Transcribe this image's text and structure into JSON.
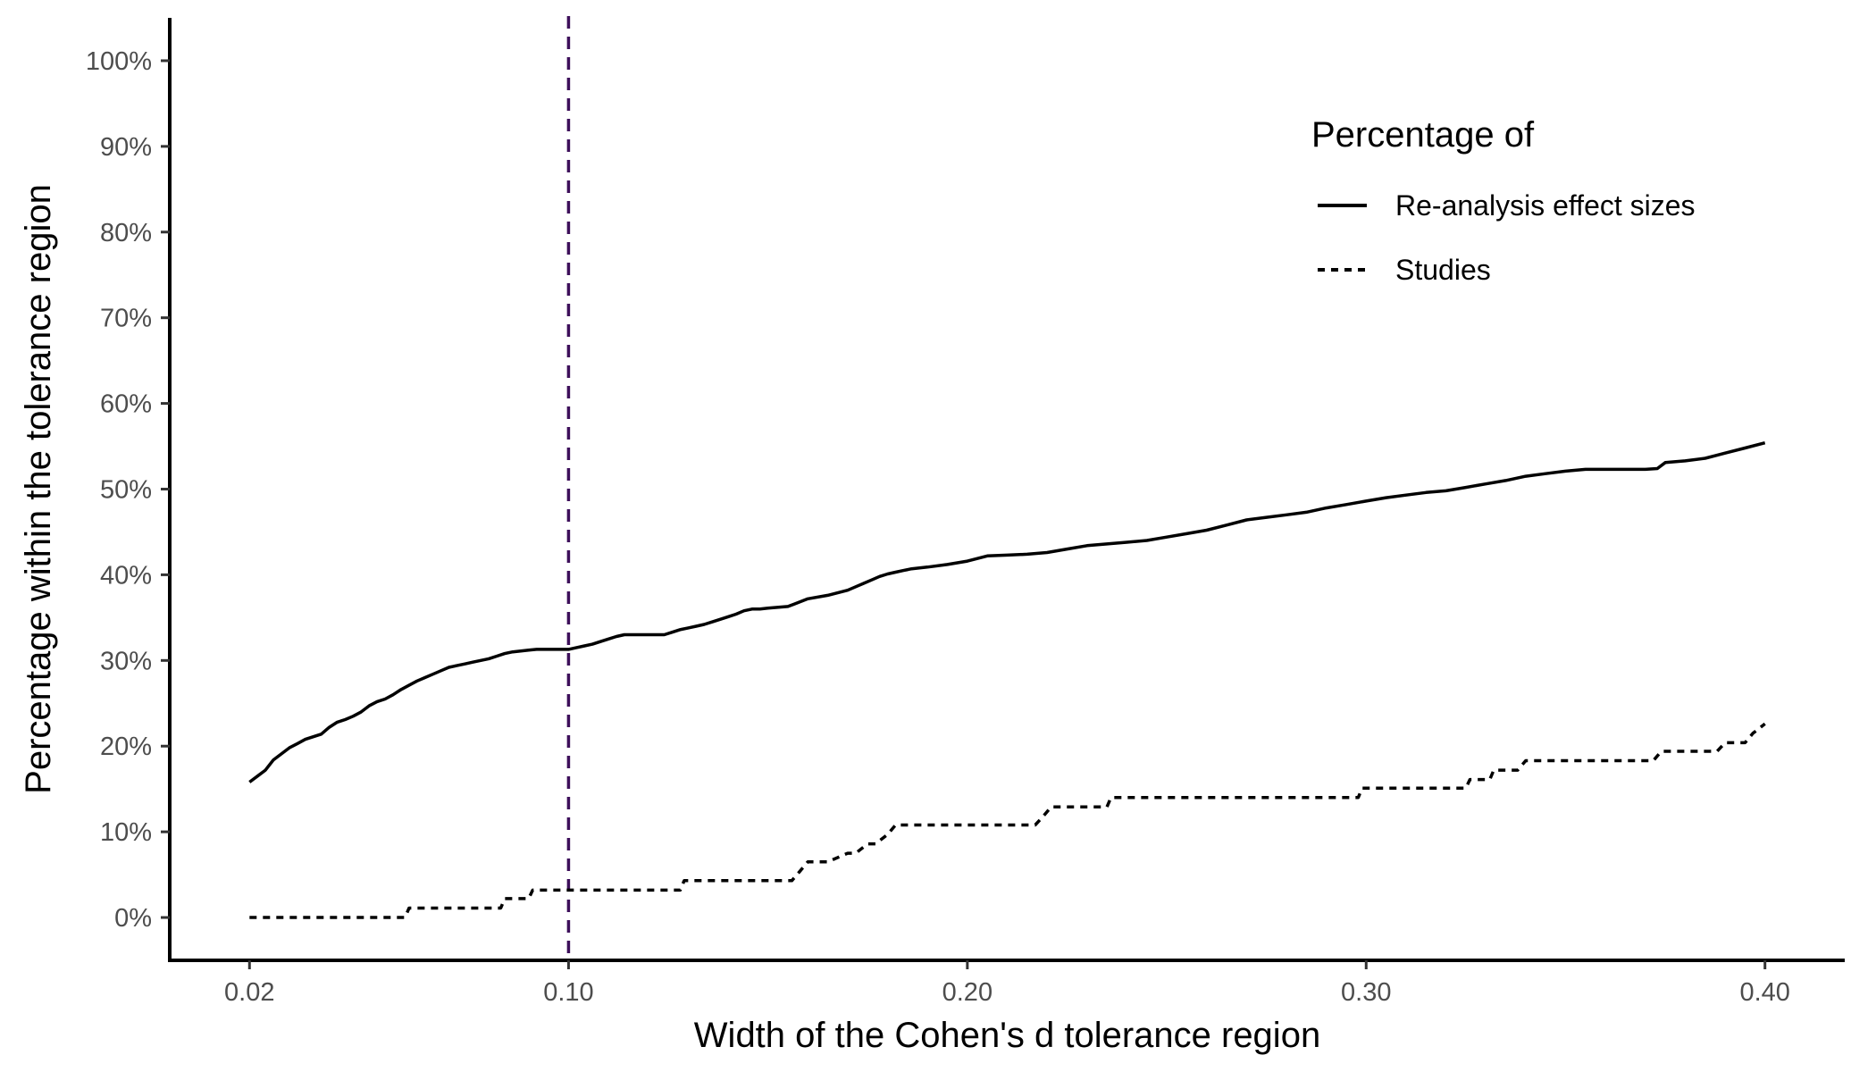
{
  "chart_data": {
    "type": "line",
    "title": "",
    "xlabel": "Width of the Cohen's d tolerance region",
    "ylabel": "Percentage within the tolerance region",
    "xlim": [
      0.0,
      0.42
    ],
    "ylim": [
      -5,
      105
    ],
    "x_ticks": [
      {
        "value": 0.02,
        "label": "0.02"
      },
      {
        "value": 0.1,
        "label": "0.10"
      },
      {
        "value": 0.2,
        "label": "0.20"
      },
      {
        "value": 0.3,
        "label": "0.30"
      },
      {
        "value": 0.4,
        "label": "0.40"
      }
    ],
    "y_ticks": [
      {
        "value": 0,
        "label": "0%"
      },
      {
        "value": 10,
        "label": "10%"
      },
      {
        "value": 20,
        "label": "20%"
      },
      {
        "value": 30,
        "label": "30%"
      },
      {
        "value": 40,
        "label": "40%"
      },
      {
        "value": 50,
        "label": "50%"
      },
      {
        "value": 60,
        "label": "60%"
      },
      {
        "value": 70,
        "label": "70%"
      },
      {
        "value": 80,
        "label": "80%"
      },
      {
        "value": 90,
        "label": "90%"
      },
      {
        "value": 100,
        "label": "100%"
      }
    ],
    "grid": false,
    "reference_line": {
      "x": 0.1,
      "color": "#3d0f5a",
      "style": "dashed"
    },
    "legend": {
      "title": "Percentage of",
      "placement": "top-right"
    },
    "series": [
      {
        "name": "Re-analysis effect sizes",
        "style": "solid",
        "color": "#000000",
        "x": [
          0.02,
          0.022,
          0.024,
          0.026,
          0.028,
          0.03,
          0.032,
          0.034,
          0.036,
          0.038,
          0.04,
          0.042,
          0.044,
          0.046,
          0.048,
          0.05,
          0.052,
          0.054,
          0.056,
          0.058,
          0.06,
          0.062,
          0.064,
          0.066,
          0.068,
          0.07,
          0.072,
          0.074,
          0.076,
          0.078,
          0.08,
          0.082,
          0.084,
          0.086,
          0.088,
          0.09,
          0.092,
          0.094,
          0.096,
          0.098,
          0.1,
          0.102,
          0.104,
          0.106,
          0.108,
          0.11,
          0.112,
          0.114,
          0.116,
          0.118,
          0.12,
          0.122,
          0.124,
          0.126,
          0.128,
          0.13,
          0.132,
          0.134,
          0.136,
          0.138,
          0.14,
          0.142,
          0.144,
          0.146,
          0.148,
          0.15,
          0.155,
          0.16,
          0.165,
          0.17,
          0.172,
          0.174,
          0.176,
          0.178,
          0.18,
          0.182,
          0.184,
          0.186,
          0.188,
          0.19,
          0.195,
          0.2,
          0.205,
          0.21,
          0.215,
          0.22,
          0.225,
          0.23,
          0.235,
          0.24,
          0.245,
          0.25,
          0.255,
          0.26,
          0.265,
          0.27,
          0.275,
          0.28,
          0.285,
          0.29,
          0.295,
          0.3,
          0.305,
          0.31,
          0.315,
          0.32,
          0.325,
          0.33,
          0.335,
          0.34,
          0.345,
          0.35,
          0.355,
          0.36,
          0.365,
          0.37,
          0.373,
          0.375,
          0.38,
          0.385,
          0.39,
          0.395,
          0.4
        ],
        "y": [
          15.8,
          16.5,
          17.2,
          18.4,
          19.1,
          19.8,
          20.3,
          20.8,
          21.1,
          21.4,
          22.2,
          22.8,
          23.1,
          23.5,
          24.0,
          24.7,
          25.2,
          25.5,
          26.0,
          26.6,
          27.1,
          27.6,
          28.0,
          28.4,
          28.8,
          29.2,
          29.4,
          29.6,
          29.8,
          30.0,
          30.2,
          30.5,
          30.8,
          31.0,
          31.1,
          31.2,
          31.3,
          31.3,
          31.3,
          31.3,
          31.3,
          31.5,
          31.7,
          31.9,
          32.2,
          32.5,
          32.8,
          33.0,
          33.0,
          33.0,
          33.0,
          33.0,
          33.0,
          33.3,
          33.6,
          33.8,
          34.0,
          34.2,
          34.5,
          34.8,
          35.1,
          35.4,
          35.8,
          36.0,
          36.0,
          36.1,
          36.3,
          37.2,
          37.6,
          38.2,
          38.6,
          39.0,
          39.4,
          39.8,
          40.1,
          40.3,
          40.5,
          40.7,
          40.8,
          40.9,
          41.2,
          41.6,
          42.2,
          42.3,
          42.4,
          42.6,
          43.0,
          43.4,
          43.6,
          43.8,
          44.0,
          44.4,
          44.8,
          45.2,
          45.8,
          46.4,
          46.7,
          47.0,
          47.3,
          47.8,
          48.2,
          48.6,
          49.0,
          49.3,
          49.6,
          49.8,
          50.2,
          50.6,
          51.0,
          51.5,
          51.8,
          52.1,
          52.3,
          52.3,
          52.3,
          52.3,
          52.4,
          53.1,
          53.3,
          53.6,
          54.2,
          54.8,
          55.4
        ]
      },
      {
        "name": "Studies",
        "style": "dotted",
        "color": "#000000",
        "x": [
          0.02,
          0.059,
          0.06,
          0.083,
          0.084,
          0.09,
          0.091,
          0.094,
          0.095,
          0.105,
          0.108,
          0.128,
          0.129,
          0.156,
          0.158,
          0.16,
          0.162,
          0.165,
          0.17,
          0.172,
          0.175,
          0.177,
          0.18,
          0.182,
          0.217,
          0.219,
          0.221,
          0.235,
          0.236,
          0.298,
          0.299,
          0.325,
          0.326,
          0.331,
          0.332,
          0.338,
          0.34,
          0.372,
          0.374,
          0.388,
          0.39,
          0.395,
          0.397,
          0.4
        ],
        "y": [
          0.0,
          0.0,
          1.1,
          1.1,
          2.2,
          2.2,
          3.2,
          3.2,
          3.2,
          3.2,
          3.2,
          3.2,
          4.3,
          4.3,
          5.4,
          6.5,
          6.5,
          6.5,
          7.5,
          7.5,
          8.6,
          8.6,
          9.7,
          10.8,
          10.8,
          11.8,
          12.9,
          12.9,
          14.0,
          14.0,
          15.1,
          15.1,
          16.1,
          16.1,
          17.2,
          17.2,
          18.3,
          18.3,
          19.4,
          19.4,
          20.4,
          20.4,
          21.5,
          22.6
        ]
      }
    ]
  }
}
